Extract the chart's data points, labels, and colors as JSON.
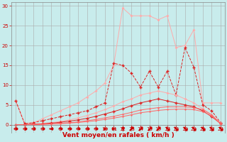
{
  "x": [
    0,
    1,
    2,
    3,
    4,
    5,
    6,
    7,
    8,
    9,
    10,
    11,
    12,
    13,
    14,
    15,
    16,
    17,
    18,
    19,
    20,
    21,
    22,
    23
  ],
  "line_light_peak": [
    6.0,
    0.3,
    0.5,
    1.5,
    2.5,
    3.5,
    4.5,
    5.5,
    7.0,
    8.5,
    10.5,
    15.0,
    29.5,
    27.5,
    27.5,
    27.5,
    26.5,
    27.5,
    19.5,
    20.0,
    24.0,
    5.5,
    5.5,
    5.5
  ],
  "line_dark_spiky": [
    6.0,
    0.2,
    0.5,
    1.0,
    1.5,
    2.0,
    2.5,
    3.0,
    3.5,
    4.5,
    5.5,
    15.5,
    15.0,
    13.0,
    9.5,
    13.5,
    9.5,
    13.5,
    7.5,
    19.5,
    14.5,
    5.0,
    3.5,
    0.5
  ],
  "line_smooth_arc": [
    0.0,
    0.0,
    0.1,
    0.3,
    0.5,
    0.8,
    1.2,
    1.7,
    2.3,
    3.0,
    3.8,
    4.7,
    5.8,
    6.5,
    7.5,
    8.0,
    8.5,
    8.0,
    7.5,
    6.5,
    5.5,
    4.0,
    2.5,
    0.5
  ],
  "line_linear": [
    0.0,
    0.0,
    0.1,
    0.2,
    0.4,
    0.6,
    0.9,
    1.2,
    1.6,
    2.1,
    2.7,
    3.3,
    4.0,
    4.8,
    5.5,
    6.0,
    6.5,
    6.0,
    5.5,
    5.0,
    4.5,
    3.5,
    2.0,
    0.3
  ],
  "line_lower1": [
    0.0,
    0.0,
    0.05,
    0.1,
    0.2,
    0.35,
    0.5,
    0.7,
    1.0,
    1.3,
    1.7,
    2.1,
    2.6,
    3.1,
    3.7,
    4.0,
    4.3,
    4.5,
    4.5,
    4.5,
    4.3,
    3.8,
    2.5,
    0.2
  ],
  "line_lower2": [
    0.0,
    0.0,
    0.05,
    0.1,
    0.15,
    0.25,
    0.4,
    0.55,
    0.75,
    1.0,
    1.3,
    1.65,
    2.05,
    2.5,
    3.0,
    3.3,
    3.6,
    3.8,
    3.9,
    3.9,
    3.8,
    3.3,
    2.2,
    0.15
  ],
  "bg_color": "#c8ecec",
  "grid_color": "#aaaaaa",
  "color_light": "#ffaaaa",
  "color_dark": "#dd2222",
  "color_mid": "#ff6666",
  "xlabel": "Vent moyen/en rafales ( km/h )",
  "ylim": [
    0,
    31
  ],
  "xlim": [
    -0.5,
    23.5
  ],
  "yticks": [
    0,
    5,
    10,
    15,
    20,
    25,
    30
  ],
  "xticks": [
    0,
    1,
    2,
    3,
    4,
    5,
    6,
    7,
    8,
    9,
    10,
    11,
    12,
    13,
    14,
    15,
    16,
    17,
    18,
    19,
    20,
    21,
    22,
    23
  ],
  "font_color": "#cc0000",
  "tick_font_size": 5.0,
  "label_font_size": 6.5
}
